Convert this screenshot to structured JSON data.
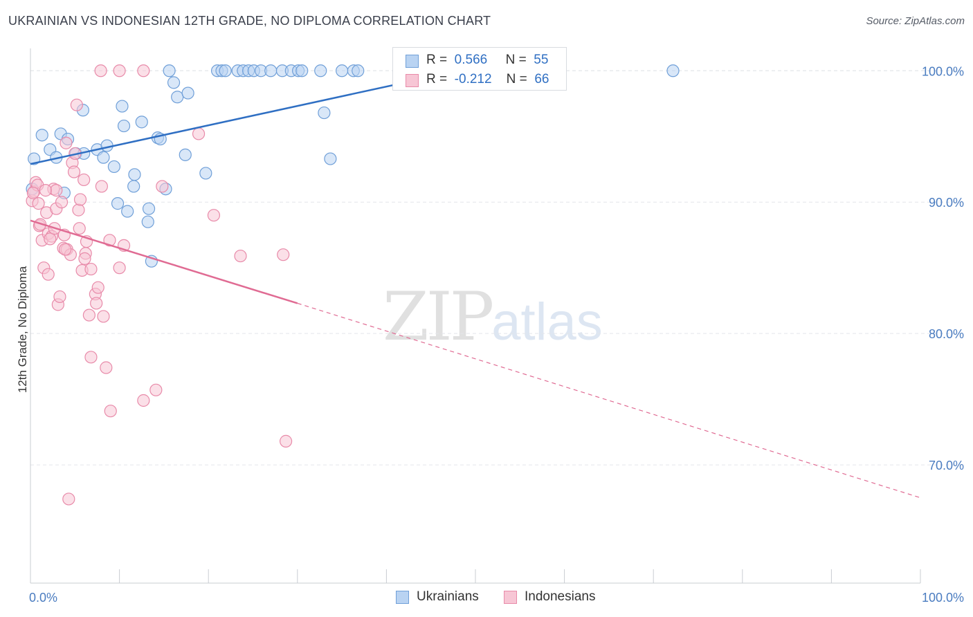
{
  "header": {
    "title": "UKRAINIAN VS INDONESIAN 12TH GRADE, NO DIPLOMA CORRELATION CHART",
    "source": "Source: ZipAtlas.com"
  },
  "watermark": {
    "zip": "ZIP",
    "atlas": "atlas"
  },
  "stats": [
    {
      "r_label": "R =",
      "r_value": "0.566",
      "n_label": "N =",
      "n_value": "55"
    },
    {
      "r_label": "R =",
      "r_value": "-0.212",
      "n_label": "N =",
      "n_value": "66"
    }
  ],
  "legend": {
    "series0": "Ukrainians",
    "series1": "Indonesians"
  },
  "colors": {
    "blue_fill": "#b9d3f2",
    "blue_stroke": "#6f9fd8",
    "blue_line": "#2f6fc3",
    "pink_fill": "#f7c6d5",
    "pink_stroke": "#e88aa9",
    "pink_line": "#e06b93",
    "grid": "#e3e5ea",
    "tick_text": "#4a7cc0"
  },
  "chart_data": {
    "type": "scatter",
    "title": "UKRAINIAN VS INDONESIAN 12TH GRADE, NO DIPLOMA CORRELATION CHART",
    "xlabel": "",
    "ylabel": "12th Grade, No Diploma",
    "xlim": [
      0,
      100
    ],
    "ylim": [
      61,
      101.7
    ],
    "x_tick_labels": [
      "0.0%",
      "100.0%"
    ],
    "y_ticks": [
      70,
      80,
      90,
      100
    ],
    "y_tick_labels": [
      "70.0%",
      "80.0%",
      "90.0%",
      "100.0%"
    ],
    "grid": true,
    "legend_position": "bottom-center",
    "series": [
      {
        "name": "Ukrainians",
        "R": 0.566,
        "N": 55,
        "trend": {
          "x0": 0,
          "y0": 92.9,
          "x1": 47.5,
          "y1": 99.9
        },
        "points": [
          [
            0.4,
            93.3
          ],
          [
            1.3,
            95.1
          ],
          [
            2.2,
            94.0
          ],
          [
            2.9,
            93.4
          ],
          [
            3.4,
            95.2
          ],
          [
            4.2,
            94.8
          ],
          [
            5.1,
            93.7
          ],
          [
            6.0,
            93.7
          ],
          [
            7.5,
            94.0
          ],
          [
            8.2,
            93.4
          ],
          [
            8.6,
            94.3
          ],
          [
            9.4,
            92.7
          ],
          [
            5.9,
            97.0
          ],
          [
            9.8,
            89.9
          ],
          [
            10.3,
            97.3
          ],
          [
            10.5,
            95.8
          ],
          [
            10.9,
            89.3
          ],
          [
            11.6,
            91.2
          ],
          [
            11.7,
            92.1
          ],
          [
            12.5,
            96.1
          ],
          [
            13.2,
            88.5
          ],
          [
            13.3,
            89.5
          ],
          [
            13.6,
            85.5
          ],
          [
            14.3,
            94.9
          ],
          [
            14.6,
            94.8
          ],
          [
            15.2,
            91.0
          ],
          [
            15.6,
            100.0
          ],
          [
            16.1,
            99.1
          ],
          [
            16.5,
            98.0
          ],
          [
            17.4,
            93.6
          ],
          [
            17.7,
            98.3
          ],
          [
            19.7,
            92.2
          ],
          [
            21.0,
            100.0
          ],
          [
            21.5,
            100.0
          ],
          [
            21.9,
            100.0
          ],
          [
            23.3,
            100.0
          ],
          [
            23.9,
            100.0
          ],
          [
            24.5,
            100.0
          ],
          [
            25.1,
            100.0
          ],
          [
            25.9,
            100.0
          ],
          [
            27.0,
            100.0
          ],
          [
            28.3,
            100.0
          ],
          [
            29.3,
            100.0
          ],
          [
            30.1,
            100.0
          ],
          [
            30.5,
            100.0
          ],
          [
            32.6,
            100.0
          ],
          [
            35.0,
            100.0
          ],
          [
            36.3,
            100.0
          ],
          [
            36.8,
            100.0
          ],
          [
            33.0,
            96.8
          ],
          [
            33.7,
            93.3
          ],
          [
            3.8,
            90.7
          ],
          [
            52.8,
            100.0
          ],
          [
            72.2,
            100.0
          ],
          [
            0.2,
            91.0
          ]
        ]
      },
      {
        "name": "Indonesians",
        "R": -0.212,
        "N": 66,
        "trend": {
          "x0": 0,
          "y0": 88.6,
          "x1": 30,
          "y1": 82.3,
          "dashed_to_x": 100,
          "dashed_to_y": 67.5
        },
        "points": [
          [
            0.2,
            90.1
          ],
          [
            0.4,
            90.8
          ],
          [
            0.6,
            91.5
          ],
          [
            0.8,
            91.3
          ],
          [
            1.0,
            88.2
          ],
          [
            1.3,
            87.1
          ],
          [
            1.5,
            85.0
          ],
          [
            1.8,
            89.2
          ],
          [
            2.0,
            87.6
          ],
          [
            2.0,
            84.5
          ],
          [
            2.4,
            87.4
          ],
          [
            2.6,
            91.0
          ],
          [
            2.9,
            90.9
          ],
          [
            2.9,
            89.5
          ],
          [
            3.1,
            82.2
          ],
          [
            3.3,
            82.8
          ],
          [
            3.5,
            90.0
          ],
          [
            3.7,
            86.5
          ],
          [
            3.8,
            87.5
          ],
          [
            4.0,
            94.5
          ],
          [
            4.1,
            86.4
          ],
          [
            4.3,
            67.4
          ],
          [
            4.5,
            86.0
          ],
          [
            4.7,
            93.0
          ],
          [
            4.9,
            92.3
          ],
          [
            5.0,
            93.7
          ],
          [
            5.2,
            97.4
          ],
          [
            5.4,
            89.4
          ],
          [
            5.5,
            88.0
          ],
          [
            5.6,
            90.2
          ],
          [
            5.8,
            84.8
          ],
          [
            6.0,
            91.7
          ],
          [
            6.2,
            86.1
          ],
          [
            6.3,
            87.0
          ],
          [
            6.6,
            81.4
          ],
          [
            6.8,
            84.9
          ],
          [
            6.8,
            78.2
          ],
          [
            7.3,
            83.0
          ],
          [
            7.4,
            82.3
          ],
          [
            7.6,
            83.5
          ],
          [
            7.9,
            100.0
          ],
          [
            8.0,
            91.2
          ],
          [
            8.2,
            81.3
          ],
          [
            8.5,
            77.4
          ],
          [
            8.9,
            87.1
          ],
          [
            9.0,
            74.1
          ],
          [
            10.0,
            100.0
          ],
          [
            10.0,
            85.0
          ],
          [
            10.5,
            86.7
          ],
          [
            12.7,
            74.9
          ],
          [
            12.7,
            100.0
          ],
          [
            14.1,
            75.7
          ],
          [
            14.8,
            91.2
          ],
          [
            18.9,
            95.2
          ],
          [
            20.6,
            89.0
          ],
          [
            23.6,
            85.9
          ],
          [
            28.4,
            86.0
          ],
          [
            28.7,
            71.8
          ],
          [
            0.3,
            90.7
          ],
          [
            1.1,
            88.3
          ],
          [
            3.9,
            86.4
          ],
          [
            2.2,
            87.2
          ],
          [
            1.7,
            90.9
          ],
          [
            6.1,
            85.7
          ],
          [
            0.9,
            89.9
          ],
          [
            2.7,
            88.0
          ]
        ]
      }
    ]
  }
}
